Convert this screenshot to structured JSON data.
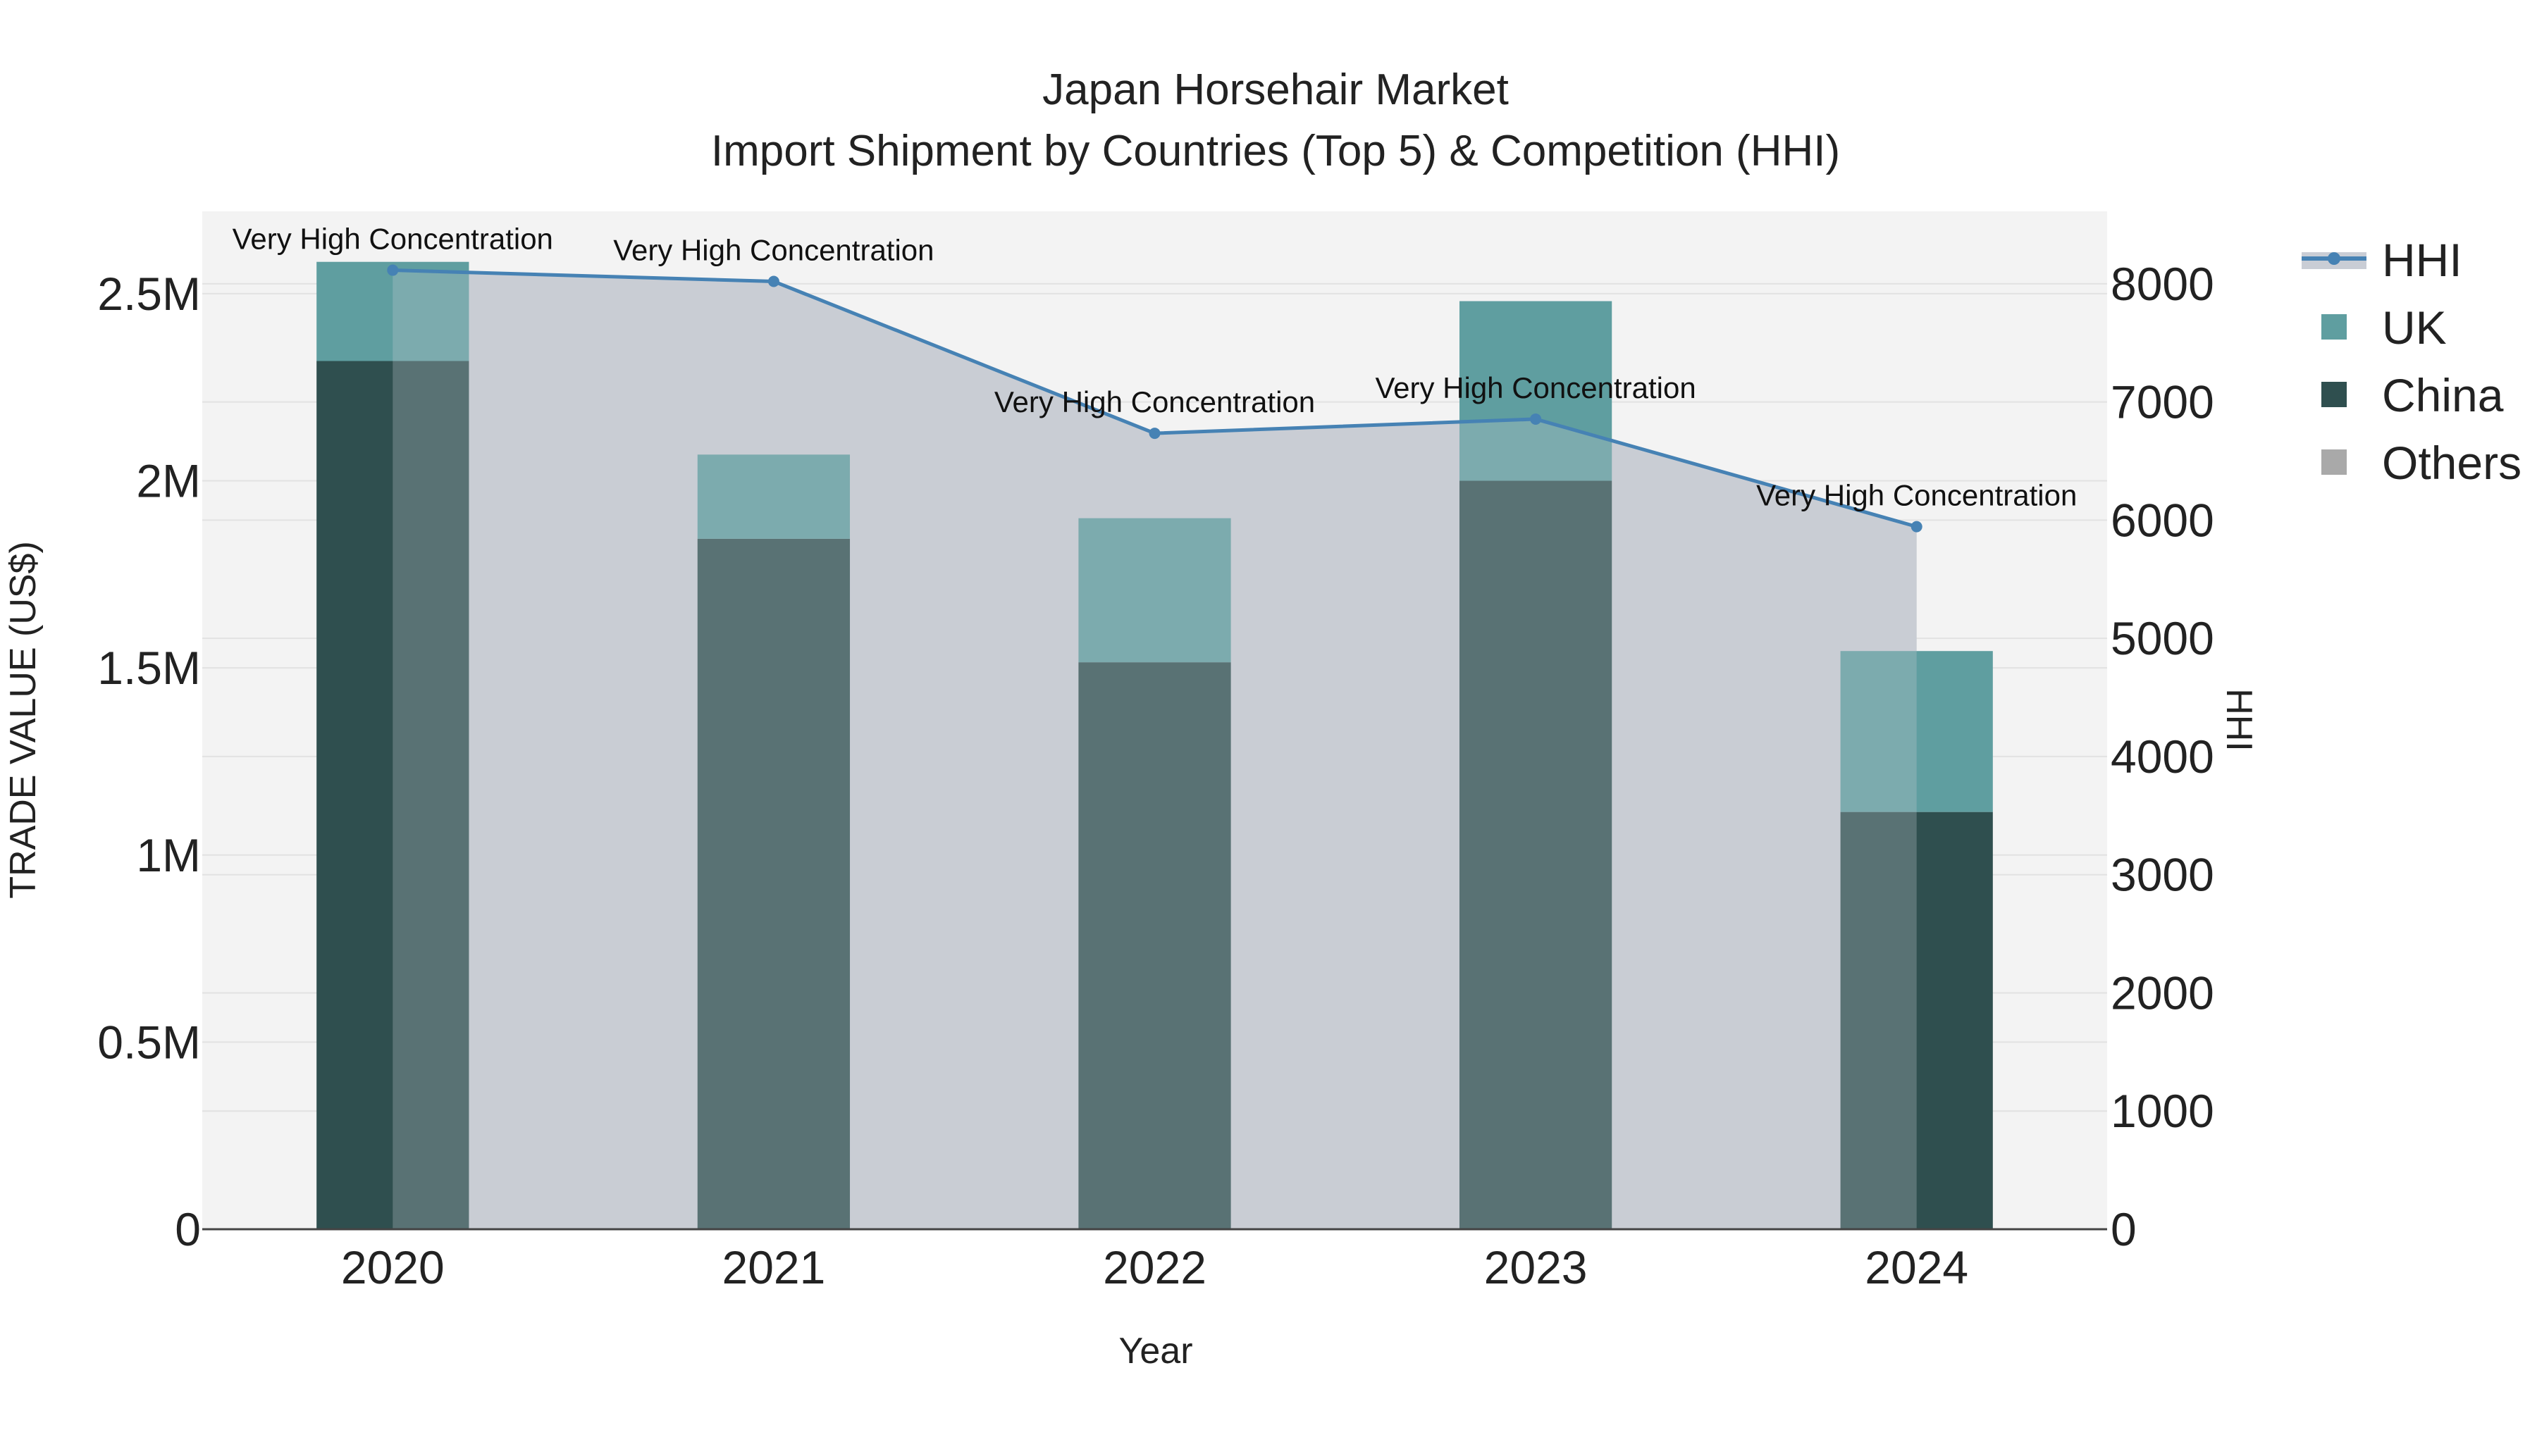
{
  "chart_data": {
    "type": "bar",
    "title": "Japan Horsehair Market",
    "subtitle": "Import Shipment by Countries (Top 5) & Competition (HHI)",
    "xlabel": "Year",
    "ylabel": "TRADE VALUE (US$)",
    "y2label": "HHI",
    "categories": [
      "2020",
      "2021",
      "2022",
      "2023",
      "2024"
    ],
    "ylim": [
      0,
      2720000
    ],
    "y2lim": [
      0,
      8613
    ],
    "y_ticks": [
      {
        "value": 0,
        "label": "0"
      },
      {
        "value": 500000,
        "label": "0.5M"
      },
      {
        "value": 1000000,
        "label": "1M"
      },
      {
        "value": 1500000,
        "label": "1.5M"
      },
      {
        "value": 2000000,
        "label": "2M"
      },
      {
        "value": 2500000,
        "label": "2.5M"
      }
    ],
    "y2_ticks": [
      {
        "value": 0,
        "label": "0"
      },
      {
        "value": 1000,
        "label": "1000"
      },
      {
        "value": 2000,
        "label": "2000"
      },
      {
        "value": 3000,
        "label": "3000"
      },
      {
        "value": 4000,
        "label": "4000"
      },
      {
        "value": 5000,
        "label": "5000"
      },
      {
        "value": 6000,
        "label": "6000"
      },
      {
        "value": 7000,
        "label": "7000"
      },
      {
        "value": 8000,
        "label": "8000"
      }
    ],
    "grid": true,
    "legend_position": "top-right",
    "series": [
      {
        "name": "HHI",
        "type": "line",
        "axis": "y2",
        "color": "#4682b4",
        "fill_color": "#c9cdd5",
        "values": [
          8115,
          8020,
          6735,
          6855,
          5945
        ]
      },
      {
        "name": "UK",
        "type": "bar",
        "color": "#5f9ea0",
        "values": [
          265000,
          225000,
          385000,
          480000,
          430000
        ]
      },
      {
        "name": "China",
        "type": "bar",
        "color": "#2f4f4f",
        "values": [
          2320000,
          1845000,
          1515000,
          2000000,
          1115000
        ]
      },
      {
        "name": "Others",
        "type": "bar",
        "color": "#a9a9a9",
        "values": [
          0,
          0,
          0,
          0,
          0
        ]
      }
    ],
    "annotations": [
      {
        "category": "2020",
        "text": "Very High Concentration"
      },
      {
        "category": "2021",
        "text": "Very High Concentration"
      },
      {
        "category": "2022",
        "text": "Very High Concentration"
      },
      {
        "category": "2023",
        "text": "Very High Concentration"
      },
      {
        "category": "2024",
        "text": "Very High Concentration"
      }
    ],
    "colors": {
      "plot_background": "#f3f3f3",
      "grid": "#e2e2e2",
      "axis_line": "#444444"
    }
  }
}
